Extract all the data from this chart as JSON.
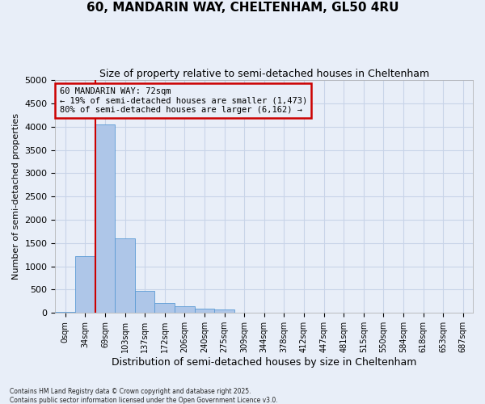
{
  "title_line1": "60, MANDARIN WAY, CHELTENHAM, GL50 4RU",
  "title_line2": "Size of property relative to semi-detached houses in Cheltenham",
  "xlabel": "Distribution of semi-detached houses by size in Cheltenham",
  "ylabel": "Number of semi-detached properties",
  "footnote": "Contains HM Land Registry data © Crown copyright and database right 2025.\nContains public sector information licensed under the Open Government Licence v3.0.",
  "bar_labels": [
    "0sqm",
    "34sqm",
    "69sqm",
    "103sqm",
    "137sqm",
    "172sqm",
    "206sqm",
    "240sqm",
    "275sqm",
    "309sqm",
    "344sqm",
    "378sqm",
    "412sqm",
    "447sqm",
    "481sqm",
    "515sqm",
    "550sqm",
    "584sqm",
    "618sqm",
    "653sqm",
    "687sqm"
  ],
  "bar_values": [
    25,
    1220,
    4050,
    1600,
    470,
    210,
    150,
    90,
    70,
    0,
    0,
    0,
    0,
    0,
    0,
    0,
    0,
    0,
    0,
    0,
    0
  ],
  "bar_color": "#aec6e8",
  "bar_edge_color": "#5b9bd5",
  "ylim": [
    0,
    5000
  ],
  "yticks": [
    0,
    500,
    1000,
    1500,
    2000,
    2500,
    3000,
    3500,
    4000,
    4500,
    5000
  ],
  "property_line_x": 1.5,
  "annotation_label": "60 MANDARIN WAY: 72sqm",
  "annotation_smaller": "← 19% of semi-detached houses are smaller (1,473)",
  "annotation_larger": "80% of semi-detached houses are larger (6,162) →",
  "box_color": "#cc0000",
  "grid_color": "#c8d4e8",
  "background_color": "#e8eef8"
}
